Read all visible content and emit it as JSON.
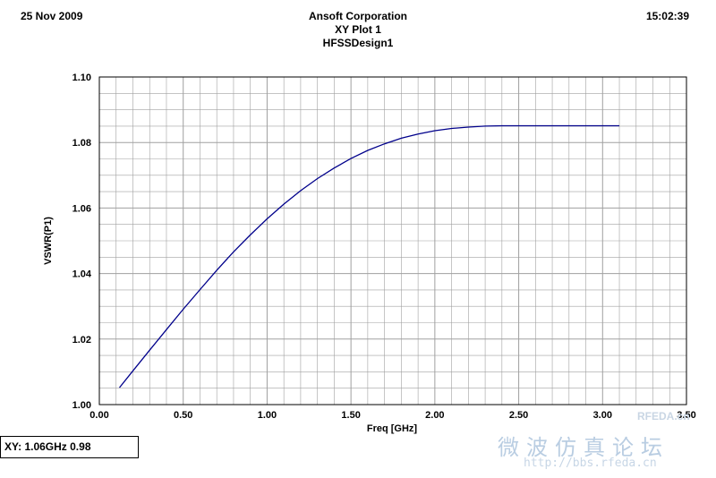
{
  "header": {
    "date": "25 Nov 2009",
    "time": "15:02:39",
    "title_lines": [
      "Ansoft Corporation",
      "XY Plot 1",
      "HFSSDesign1"
    ]
  },
  "readout": "XY: 1.06GHz 0.98",
  "watermark": {
    "chinese": "微波仿真论坛",
    "url": "http://bbs.rfeda.cn",
    "logo": "RFEDA.cn"
  },
  "colors": {
    "curve": "#00008b",
    "grid": "#a0a0a0",
    "frame": "#000000"
  },
  "chart_data": {
    "type": "line",
    "xlabel": "Freq [GHz]",
    "ylabel": "VSWR(P1)",
    "xlim": [
      0.0,
      3.5
    ],
    "ylim": [
      1.0,
      1.1
    ],
    "xticks": [
      "0.00",
      "0.50",
      "1.00",
      "1.50",
      "2.00",
      "2.50",
      "3.00",
      "3.50"
    ],
    "yticks": [
      "1.00",
      "1.02",
      "1.04",
      "1.06",
      "1.08",
      "1.10"
    ],
    "grid": true,
    "series": [
      {
        "x": [
          0.12,
          0.2,
          0.3,
          0.4,
          0.5,
          0.6,
          0.7,
          0.8,
          0.9,
          1.0,
          1.1,
          1.2,
          1.3,
          1.4,
          1.5,
          1.6,
          1.7,
          1.8,
          1.9,
          2.0,
          2.1,
          2.2,
          2.3,
          2.4,
          2.5,
          2.6,
          2.7,
          2.8,
          2.9,
          3.0,
          3.1
        ],
        "y": [
          1.0052,
          1.0103,
          1.0166,
          1.0229,
          1.0291,
          1.0351,
          1.041,
          1.0466,
          1.0518,
          1.0567,
          1.0612,
          1.0653,
          1.069,
          1.0722,
          1.0751,
          1.0776,
          1.0796,
          1.0813,
          1.0826,
          1.0836,
          1.0843,
          1.0847,
          1.085,
          1.0851,
          1.0851,
          1.0851,
          1.0851,
          1.0851,
          1.0851,
          1.0851,
          1.0851
        ]
      }
    ]
  }
}
